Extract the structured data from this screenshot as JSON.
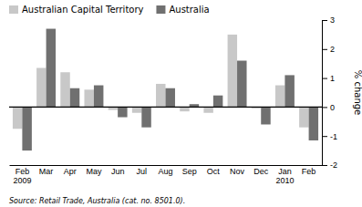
{
  "chart_data": {
    "type": "bar",
    "categories": [
      "Feb\n2009",
      "Mar",
      "Apr",
      "May",
      "Jun",
      "Jul",
      "Aug",
      "Sep",
      "Oct",
      "Nov",
      "Dec",
      "Jan\n2010",
      "Feb"
    ],
    "series": [
      {
        "name": "Australian Capital Territory",
        "color": "#c8c8c8",
        "values": [
          -0.75,
          1.35,
          1.2,
          0.6,
          -0.1,
          -0.2,
          0.8,
          -0.15,
          -0.2,
          2.5,
          -0.05,
          0.75,
          -0.7
        ]
      },
      {
        "name": "Australia",
        "color": "#707070",
        "values": [
          -1.5,
          2.7,
          0.65,
          0.75,
          -0.35,
          -0.7,
          0.65,
          0.1,
          0.4,
          1.6,
          -0.6,
          1.1,
          -1.15
        ]
      }
    ],
    "ylabel": "% change",
    "annotations": [
      "Source: Retail Trade, Australia (cat. no. 8501.0)."
    ],
    "ylim": [
      -2,
      3
    ],
    "yticks": [
      -2,
      -1,
      0,
      1,
      2,
      3
    ],
    "legend": "upper left",
    "grid": false
  }
}
